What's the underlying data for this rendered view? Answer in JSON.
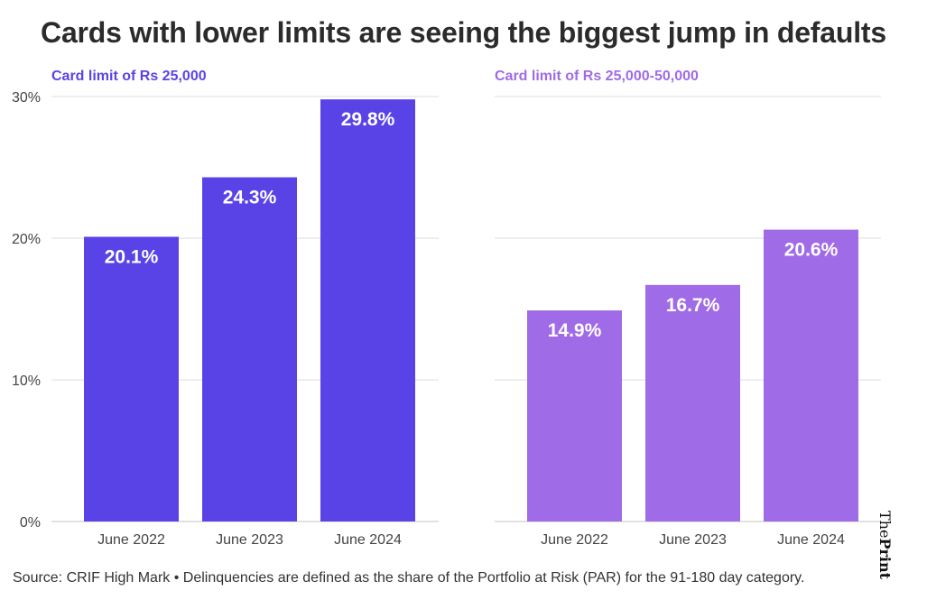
{
  "title": "Cards with lower limits are seeing the biggest jump in defaults",
  "source": "Source: CRIF High Mark • Delinquencies are defined as the share of the Portfolio at Risk (PAR) for the 91-180 day category.",
  "brand": {
    "the": "The",
    "print": "Print"
  },
  "chart_data": [
    {
      "type": "bar",
      "title": "Card limit of Rs 25,000",
      "categories": [
        "June 2022",
        "June 2023",
        "June 2024"
      ],
      "values": [
        20.1,
        24.3,
        29.8
      ],
      "data_labels": [
        "20.1%",
        "24.3%",
        "29.8%"
      ],
      "color": "#5a43e6",
      "ylim": [
        0,
        30
      ],
      "yticks": [
        0,
        10,
        20,
        30
      ],
      "ytick_labels": [
        "0%",
        "10%",
        "20%",
        "30%"
      ],
      "grid": true
    },
    {
      "type": "bar",
      "title": "Card limit of Rs 25,000-50,000",
      "categories": [
        "June 2022",
        "June 2023",
        "June 2024"
      ],
      "values": [
        14.9,
        16.7,
        20.6
      ],
      "data_labels": [
        "14.9%",
        "16.7%",
        "20.6%"
      ],
      "color": "#a06be6",
      "ylim": [
        0,
        30
      ],
      "yticks": [
        0,
        10,
        20,
        30
      ],
      "grid": true
    }
  ]
}
